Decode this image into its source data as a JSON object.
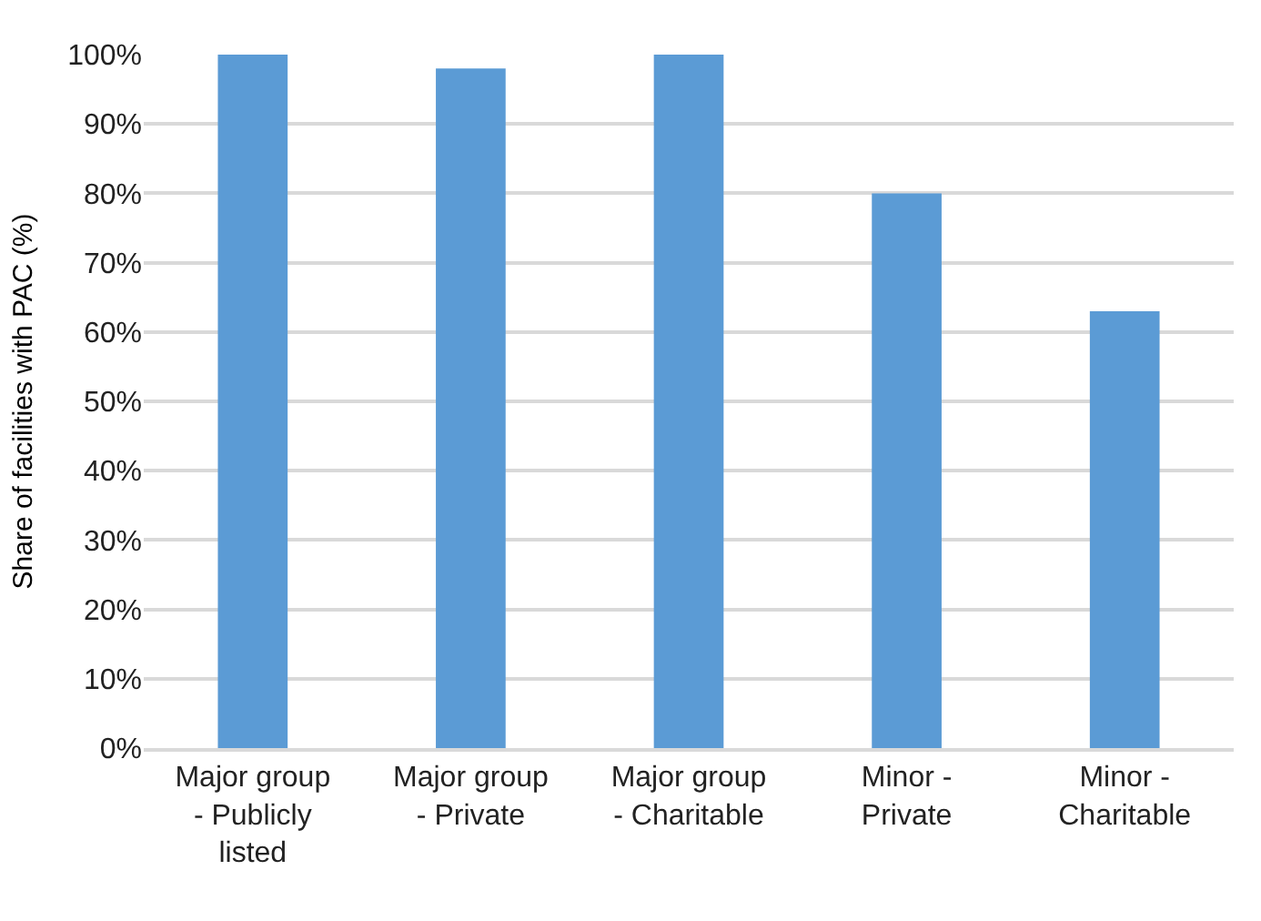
{
  "chart_data": {
    "type": "bar",
    "ylabel": "Share of facilities with PAC (%)",
    "categories": [
      "Major group - Publicly listed",
      "Major group - Private",
      "Major group - Charitable",
      "Minor - Private",
      "Minor - Charitable"
    ],
    "values": [
      100,
      98,
      100,
      80,
      63
    ],
    "color": "#5b9bd5",
    "ylim": [
      0,
      100
    ],
    "yticks": [
      {
        "value": 0,
        "label": "0%"
      },
      {
        "value": 10,
        "label": "10%"
      },
      {
        "value": 20,
        "label": "20%"
      },
      {
        "value": 30,
        "label": "30%"
      },
      {
        "value": 40,
        "label": "40%"
      },
      {
        "value": 50,
        "label": "50%"
      },
      {
        "value": 60,
        "label": "60%"
      },
      {
        "value": 70,
        "label": "70%"
      },
      {
        "value": 80,
        "label": "80%"
      },
      {
        "value": 90,
        "label": "90%"
      },
      {
        "value": 100,
        "label": "100%"
      }
    ],
    "grid": "y"
  }
}
